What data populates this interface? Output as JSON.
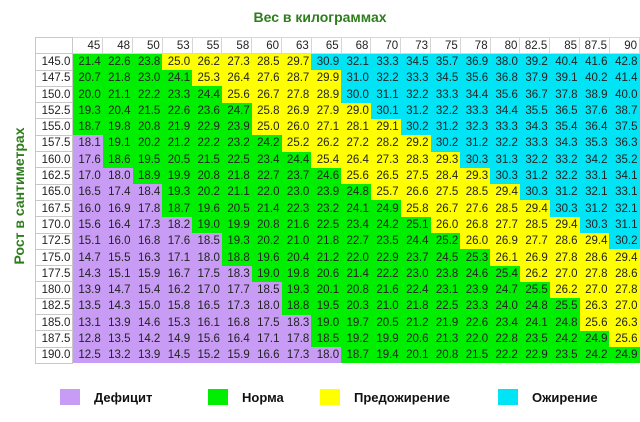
{
  "chart_data": {
    "type": "table",
    "title": "Вес в килограммах",
    "xlabel": "Вес в килограммах",
    "ylabel": "Рост в сантиметрах",
    "columns": [
      "45",
      "48",
      "50",
      "53",
      "55",
      "58",
      "60",
      "63",
      "65",
      "68",
      "70",
      "73",
      "75",
      "78",
      "80",
      "82.5",
      "85",
      "87.5",
      "90"
    ],
    "rows": [
      {
        "height": "145.0",
        "values": [
          "21.4",
          "22.6",
          "23.8",
          "25.0",
          "26.2",
          "27.3",
          "28.5",
          "29.7",
          "30.9",
          "32.1",
          "33.3",
          "34.5",
          "35.7",
          "36.9",
          "38.0",
          "39.2",
          "40.4",
          "41.6",
          "42.8"
        ],
        "cats": "GGGYYYYYCCCCCCCCCCC"
      },
      {
        "height": "147.5",
        "values": [
          "20.7",
          "21.8",
          "23.0",
          "24.1",
          "25.3",
          "26.4",
          "27.6",
          "28.7",
          "29.9",
          "31.0",
          "32.2",
          "33.3",
          "34.5",
          "35.6",
          "36.8",
          "37.9",
          "39.1",
          "40.2",
          "41.4"
        ],
        "cats": "GGGGYYYYYCCCCCCCCCC"
      },
      {
        "height": "150.0",
        "values": [
          "20.0",
          "21.1",
          "22.2",
          "23.3",
          "24.4",
          "25.6",
          "26.7",
          "27.8",
          "28.9",
          "30.0",
          "31.1",
          "32.2",
          "33.3",
          "34.4",
          "35.6",
          "36.7",
          "37.8",
          "38.9",
          "40.0"
        ],
        "cats": "GGGGGYYYYCCCCCCCCCC"
      },
      {
        "height": "152.5",
        "values": [
          "19.3",
          "20.4",
          "21.5",
          "22.6",
          "23.6",
          "24.7",
          "25.8",
          "26.9",
          "27.9",
          "29.0",
          "30.1",
          "31.2",
          "32.2",
          "33.3",
          "34.4",
          "35.5",
          "36.5",
          "37.6",
          "38.7"
        ],
        "cats": "GGGGGGYYYYCCCCCCCCC"
      },
      {
        "height": "155.0",
        "values": [
          "18.7",
          "19.8",
          "20.8",
          "21.9",
          "22.9",
          "23.9",
          "25.0",
          "26.0",
          "27.1",
          "28.1",
          "29.1",
          "30.2",
          "31.2",
          "32.3",
          "33.3",
          "34.3",
          "35.4",
          "36.4",
          "37.5"
        ],
        "cats": "GGGGGGYYYYYCCCCCCCC"
      },
      {
        "height": "157.5",
        "values": [
          "18.1",
          "19.1",
          "20.2",
          "21.2",
          "22.2",
          "23.2",
          "24.2",
          "25.2",
          "26.2",
          "27.2",
          "28.2",
          "29.2",
          "30.2",
          "31.2",
          "32.2",
          "33.3",
          "34.3",
          "35.3",
          "36.3"
        ],
        "cats": "PGGGGGGYYYYYCCCCCCC"
      },
      {
        "height": "160.0",
        "values": [
          "17.6",
          "18.6",
          "19.5",
          "20.5",
          "21.5",
          "22.5",
          "23.4",
          "24.4",
          "25.4",
          "26.4",
          "27.3",
          "28.3",
          "29.3",
          "30.3",
          "31.3",
          "32.2",
          "33.2",
          "34.2",
          "35.2"
        ],
        "cats": "PGGGGGGGYYYYYCCCCCC"
      },
      {
        "height": "162.5",
        "values": [
          "17.0",
          "18.0",
          "18.9",
          "19.9",
          "20.8",
          "21.8",
          "22.7",
          "23.7",
          "24.6",
          "25.6",
          "26.5",
          "27.5",
          "28.4",
          "29.3",
          "30.3",
          "31.2",
          "32.2",
          "33.1",
          "34.1"
        ],
        "cats": "PPGGGGGGGYYYYYCCCCC"
      },
      {
        "height": "165.0",
        "values": [
          "16.5",
          "17.4",
          "18.4",
          "19.3",
          "20.2",
          "21.1",
          "22.0",
          "23.0",
          "23.9",
          "24.8",
          "25.7",
          "26.6",
          "27.5",
          "28.5",
          "29.4",
          "30.3",
          "31.2",
          "32.1",
          "33.1"
        ],
        "cats": "PPPGGGGGGGYYYYYCCCC"
      },
      {
        "height": "167.5",
        "values": [
          "16.0",
          "16.9",
          "17.8",
          "18.7",
          "19.6",
          "20.5",
          "21.4",
          "22.3",
          "23.2",
          "24.1",
          "24.9",
          "25.8",
          "26.7",
          "27.6",
          "28.5",
          "29.4",
          "30.3",
          "31.2",
          "32.1"
        ],
        "cats": "PPPGGGGGGGGYYYYYCCC"
      },
      {
        "height": "170.0",
        "values": [
          "15.6",
          "16.4",
          "17.3",
          "18.2",
          "19.0",
          "19.9",
          "20.8",
          "21.6",
          "22.5",
          "23.4",
          "24.2",
          "25.1",
          "26.0",
          "26.8",
          "27.7",
          "28.5",
          "29.4",
          "30.3",
          "31.1"
        ],
        "cats": "PPPPGGGGGGGGYYYYYCC"
      },
      {
        "height": "172.5",
        "values": [
          "15.1",
          "16.0",
          "16.8",
          "17.6",
          "18.5",
          "19.3",
          "20.2",
          "21.0",
          "21.8",
          "22.7",
          "23.5",
          "24.4",
          "25.2",
          "26.0",
          "26.9",
          "27.7",
          "28.6",
          "29.4",
          "30.2"
        ],
        "cats": "PPPPPGGGGGGGGYYYYYC"
      },
      {
        "height": "175.0",
        "values": [
          "14.7",
          "15.5",
          "16.3",
          "17.1",
          "18.0",
          "18.8",
          "19.6",
          "20.4",
          "21.2",
          "22.0",
          "22.9",
          "23.7",
          "24.5",
          "25.3",
          "26.1",
          "26.9",
          "27.8",
          "28.6",
          "29.4"
        ],
        "cats": "PPPPPGGGGGGGGGYYYYY"
      },
      {
        "height": "177.5",
        "values": [
          "14.3",
          "15.1",
          "15.9",
          "16.7",
          "17.5",
          "18.3",
          "19.0",
          "19.8",
          "20.6",
          "21.4",
          "22.2",
          "23.0",
          "23.8",
          "24.6",
          "25.4",
          "26.2",
          "27.0",
          "27.8",
          "28.6"
        ],
        "cats": "PPPPPPGGGGGGGGGYYYY"
      },
      {
        "height": "180.0",
        "values": [
          "13.9",
          "14.7",
          "15.4",
          "16.2",
          "17.0",
          "17.7",
          "18.5",
          "19.3",
          "20.1",
          "20.8",
          "21.6",
          "22.4",
          "23.1",
          "23.9",
          "24.7",
          "25.5",
          "26.2",
          "27.0",
          "27.8"
        ],
        "cats": "PPPPPPPGGGGGGGGGYYY"
      },
      {
        "height": "182.5",
        "values": [
          "13.5",
          "14.3",
          "15.0",
          "15.8",
          "16.5",
          "17.3",
          "18.0",
          "18.8",
          "19.5",
          "20.3",
          "21.0",
          "21.8",
          "22.5",
          "23.3",
          "24.0",
          "24.8",
          "25.5",
          "26.3",
          "27.0"
        ],
        "cats": "PPPPPPPGGGGGGGGGGYY"
      },
      {
        "height": "185.0",
        "values": [
          "13.1",
          "13.9",
          "14.6",
          "15.3",
          "16.1",
          "16.8",
          "17.5",
          "18.3",
          "19.0",
          "19.7",
          "20.5",
          "21.2",
          "21.9",
          "22.6",
          "23.4",
          "24.1",
          "24.8",
          "25.6",
          "26.3"
        ],
        "cats": "PPPPPPPPGGGGGGGGGYY"
      },
      {
        "height": "187.5",
        "values": [
          "12.8",
          "13.5",
          "14.2",
          "14.9",
          "15.6",
          "16.4",
          "17.1",
          "17.8",
          "18.5",
          "19.2",
          "19.9",
          "20.6",
          "21.3",
          "22.0",
          "22.8",
          "23.5",
          "24.2",
          "24.9",
          "25.6"
        ],
        "cats": "PPPPPPPPGGGGGGGGGGY"
      },
      {
        "height": "190.0",
        "values": [
          "12.5",
          "13.2",
          "13.9",
          "14.5",
          "15.2",
          "15.9",
          "16.6",
          "17.3",
          "18.0",
          "18.7",
          "19.4",
          "20.1",
          "20.8",
          "21.5",
          "22.2",
          "22.9",
          "23.5",
          "24.2",
          "24.9"
        ],
        "cats": "PPPPPPPPPGGGGGGGGGG"
      }
    ],
    "legend": [
      {
        "key": "P",
        "label": "Дефицит",
        "color": "#c89bf5"
      },
      {
        "key": "G",
        "label": "Норма",
        "color": "#00ee00"
      },
      {
        "key": "Y",
        "label": "Предожирение",
        "color": "#ffff00"
      },
      {
        "key": "C",
        "label": "Ожирение",
        "color": "#00e4f5"
      }
    ]
  },
  "titles": {
    "x_axis": "Вес в килограммах",
    "y_axis": "Рост в сантиметрах"
  },
  "legend": {
    "deficit": "Дефицит",
    "norm": "Норма",
    "preobesity": "Предожирение",
    "obesity": "Ожирение"
  },
  "colors": {
    "deficit": "#c89bf5",
    "norm": "#00ee00",
    "preobesity": "#ffff00",
    "obesity": "#00e4f5",
    "title": "#2e7d1c"
  }
}
